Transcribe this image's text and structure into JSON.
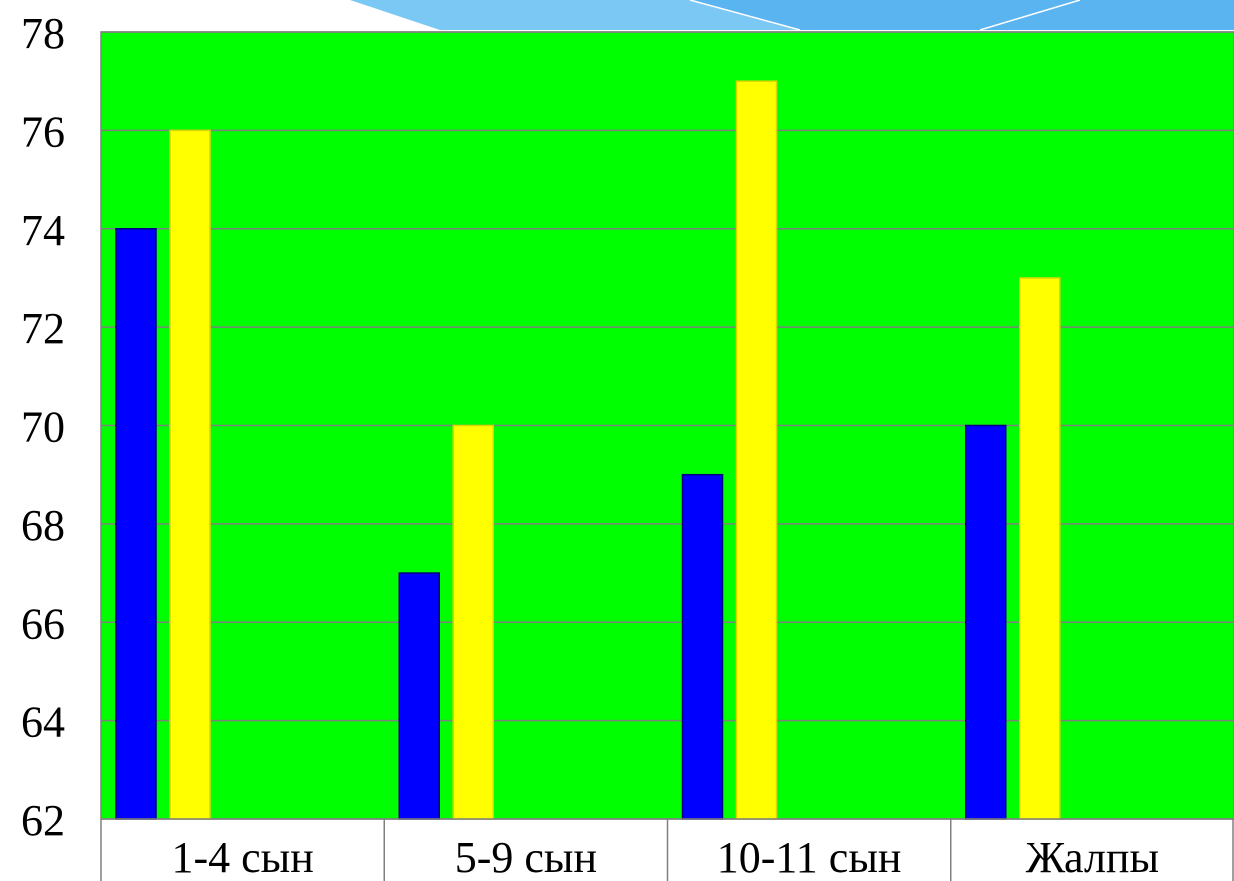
{
  "chart_data": {
    "type": "bar",
    "categories": [
      "1-4 сын",
      "5-9 сын",
      "10-11 сын",
      "Жалпы"
    ],
    "series": [
      {
        "values": [
          74,
          67,
          69,
          70
        ],
        "color": "#0000ff"
      },
      {
        "values": [
          76,
          70,
          77,
          73
        ],
        "color": "#ffff00"
      }
    ],
    "title": "",
    "xlabel": "",
    "ylabel": "",
    "ylim": [
      62,
      78
    ],
    "yticks": [
      62,
      64,
      66,
      68,
      70,
      72,
      74,
      76,
      78
    ],
    "grid": true,
    "legend": "none",
    "plot_background": "#00ff00",
    "decoration_color": "#5ab4f0"
  }
}
